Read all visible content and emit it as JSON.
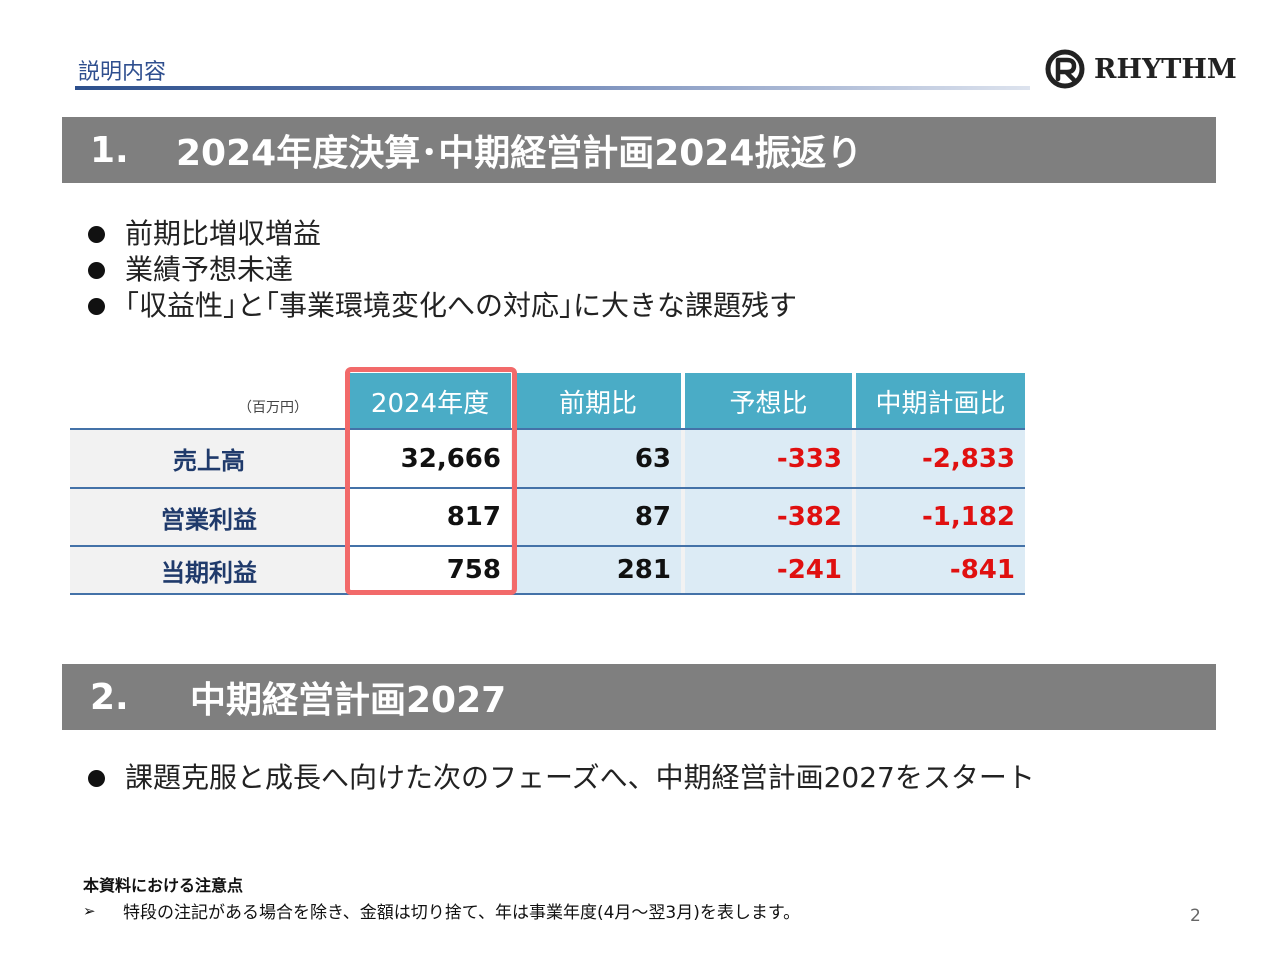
{
  "header": {
    "label": "説明内容",
    "logo_text": "RHYTHM"
  },
  "section1": {
    "number": "1.",
    "title": "2024年度決算･中期経営計画2024振返り",
    "bullets": [
      "前期比増収増益",
      "業績予想未達",
      "｢収益性｣と｢事業環境変化への対応｣に大きな課題残す"
    ]
  },
  "table": {
    "unit": "（百万円）",
    "columns": [
      "2024年度",
      "前期比",
      "予想比",
      "中期計画比"
    ],
    "rows": [
      {
        "label": "売上高",
        "values": [
          "32,666",
          "63",
          "-333",
          "-2,833"
        ]
      },
      {
        "label": "営業利益",
        "values": [
          "817",
          "87",
          "-382",
          "-1,182"
        ]
      },
      {
        "label": "当期利益",
        "values": [
          "758",
          "281",
          "-241",
          "-841"
        ]
      }
    ],
    "colors": {
      "header": "#4aacc6",
      "label_bg": "#f2f2f2",
      "cell_bg": "#dcebf5",
      "highlight": "#f26a6a",
      "negative": "#e01010"
    }
  },
  "section2": {
    "number": "2.",
    "title": "中期経営計画2027",
    "bullets": [
      "課題克服と成長へ向けた次のフェーズへ、中期経営計画2027をスタート"
    ]
  },
  "notes": {
    "title": "本資料における注意点",
    "items": [
      "特段の注記がある場合を除き、金額は切り捨て、年は事業年度(4月～翌3月)を表します。"
    ]
  },
  "page_number": "2"
}
